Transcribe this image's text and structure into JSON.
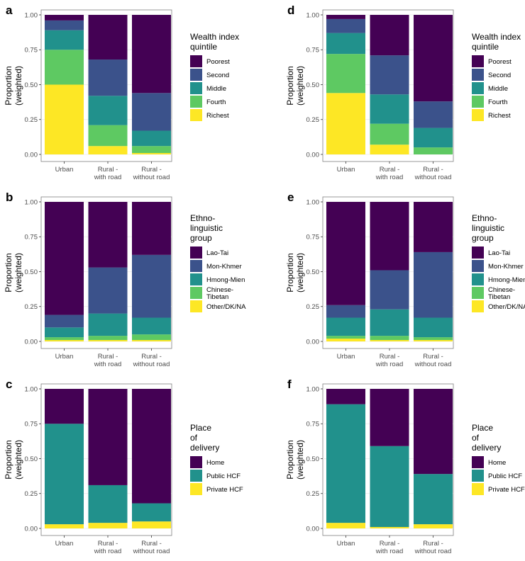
{
  "colors": {
    "viridis5": [
      "#fde725",
      "#5ec962",
      "#21918c",
      "#3b528b",
      "#440154"
    ],
    "viridis3": [
      "#fde725",
      "#21918c",
      "#440154"
    ],
    "grid": "#ebebeb",
    "panel_border": "#7f7f7f"
  },
  "chart_data": [
    {
      "panel": "a",
      "type": "bar",
      "stacked": true,
      "ylabel": "Proportion (weighted)",
      "ylim": [
        0,
        1
      ],
      "yticks": [
        "0.00",
        "0.25",
        "0.50",
        "0.75",
        "1.00"
      ],
      "categories": [
        "Urban",
        "Rural - with road",
        "Rural - without road"
      ],
      "legend_title": "Wealth index quintile",
      "legend": [
        "Poorest",
        "Second",
        "Middle",
        "Fourth",
        "Richest"
      ],
      "series": [
        {
          "name": "Richest",
          "values": [
            0.5,
            0.06,
            0.01
          ]
        },
        {
          "name": "Fourth",
          "values": [
            0.25,
            0.15,
            0.05
          ]
        },
        {
          "name": "Middle",
          "values": [
            0.14,
            0.21,
            0.11
          ]
        },
        {
          "name": "Second",
          "values": [
            0.07,
            0.26,
            0.27
          ]
        },
        {
          "name": "Poorest",
          "values": [
            0.04,
            0.32,
            0.56
          ]
        }
      ]
    },
    {
      "panel": "b",
      "type": "bar",
      "stacked": true,
      "ylabel": "Proportion (weighted)",
      "ylim": [
        0,
        1
      ],
      "yticks": [
        "0.00",
        "0.25",
        "0.50",
        "0.75",
        "1.00"
      ],
      "categories": [
        "Urban",
        "Rural - with road",
        "Rural - without road"
      ],
      "legend_title": "Ethno- linguistic group",
      "legend": [
        "Lao-Tai",
        "Mon-Khmer",
        "Hmong-Mien",
        "Chinese- Tibetan",
        "Other/DK/NA"
      ],
      "series": [
        {
          "name": "Other/DK/NA",
          "values": [
            0.01,
            0.01,
            0.01
          ]
        },
        {
          "name": "Chinese-Tibetan",
          "values": [
            0.02,
            0.03,
            0.04
          ]
        },
        {
          "name": "Hmong-Mien",
          "values": [
            0.07,
            0.16,
            0.12
          ]
        },
        {
          "name": "Mon-Khmer",
          "values": [
            0.09,
            0.33,
            0.45
          ]
        },
        {
          "name": "Lao-Tai",
          "values": [
            0.81,
            0.47,
            0.38
          ]
        }
      ]
    },
    {
      "panel": "c",
      "type": "bar",
      "stacked": true,
      "ylabel": "Proportion (weighted)",
      "ylim": [
        0,
        1
      ],
      "yticks": [
        "0.00",
        "0.25",
        "0.50",
        "0.75",
        "1.00"
      ],
      "categories": [
        "Urban",
        "Rural - with road",
        "Rural - without road"
      ],
      "legend_title": "Place of delivery",
      "legend": [
        "Home",
        "Public HCF",
        "Private HCF"
      ],
      "series": [
        {
          "name": "Private HCF",
          "values": [
            0.03,
            0.04,
            0.05
          ]
        },
        {
          "name": "Public HCF",
          "values": [
            0.72,
            0.27,
            0.13
          ]
        },
        {
          "name": "Home",
          "values": [
            0.25,
            0.69,
            0.82
          ]
        }
      ]
    },
    {
      "panel": "d",
      "type": "bar",
      "stacked": true,
      "ylabel": "Proportion (weighted)",
      "ylim": [
        0,
        1
      ],
      "yticks": [
        "0.00",
        "0.25",
        "0.50",
        "0.75",
        "1.00"
      ],
      "categories": [
        "Urban",
        "Rural - with road",
        "Rural - without road"
      ],
      "legend_title": "Wealth index quintile",
      "legend": [
        "Poorest",
        "Second",
        "Middle",
        "Fourth",
        "Richest"
      ],
      "series": [
        {
          "name": "Richest",
          "values": [
            0.44,
            0.07,
            0.0
          ]
        },
        {
          "name": "Fourth",
          "values": [
            0.28,
            0.15,
            0.05
          ]
        },
        {
          "name": "Middle",
          "values": [
            0.15,
            0.21,
            0.14
          ]
        },
        {
          "name": "Second",
          "values": [
            0.1,
            0.28,
            0.19
          ]
        },
        {
          "name": "Poorest",
          "values": [
            0.03,
            0.29,
            0.62
          ]
        }
      ]
    },
    {
      "panel": "e",
      "type": "bar",
      "stacked": true,
      "ylabel": "Proportion (weighted)",
      "ylim": [
        0,
        1
      ],
      "yticks": [
        "0.00",
        "0.25",
        "0.50",
        "0.75",
        "1.00"
      ],
      "categories": [
        "Urban",
        "Rural - with road",
        "Rural - without road"
      ],
      "legend_title": "Ethno- linguistic group",
      "legend": [
        "Lao-Tai",
        "Mon-Khmer",
        "Hmong-Mien",
        "Chinese- Tibetan",
        "Other/DK/NA"
      ],
      "series": [
        {
          "name": "Other/DK/NA",
          "values": [
            0.02,
            0.01,
            0.01
          ]
        },
        {
          "name": "Chinese-Tibetan",
          "values": [
            0.02,
            0.03,
            0.02
          ]
        },
        {
          "name": "Hmong-Mien",
          "values": [
            0.13,
            0.19,
            0.14
          ]
        },
        {
          "name": "Mon-Khmer",
          "values": [
            0.09,
            0.28,
            0.47
          ]
        },
        {
          "name": "Lao-Tai",
          "values": [
            0.74,
            0.49,
            0.36
          ]
        }
      ]
    },
    {
      "panel": "f",
      "type": "bar",
      "stacked": true,
      "ylabel": "Proportion (weighted)",
      "ylim": [
        0,
        1
      ],
      "yticks": [
        "0.00",
        "0.25",
        "0.50",
        "0.75",
        "1.00"
      ],
      "categories": [
        "Urban",
        "Rural - with road",
        "Rural - without road"
      ],
      "legend_title": "Place of delivery",
      "legend": [
        "Home",
        "Public HCF",
        "Private HCF"
      ],
      "series": [
        {
          "name": "Private HCF",
          "values": [
            0.04,
            0.01,
            0.03
          ]
        },
        {
          "name": "Public HCF",
          "values": [
            0.85,
            0.58,
            0.36
          ]
        },
        {
          "name": "Home",
          "values": [
            0.11,
            0.41,
            0.61
          ]
        }
      ]
    }
  ]
}
